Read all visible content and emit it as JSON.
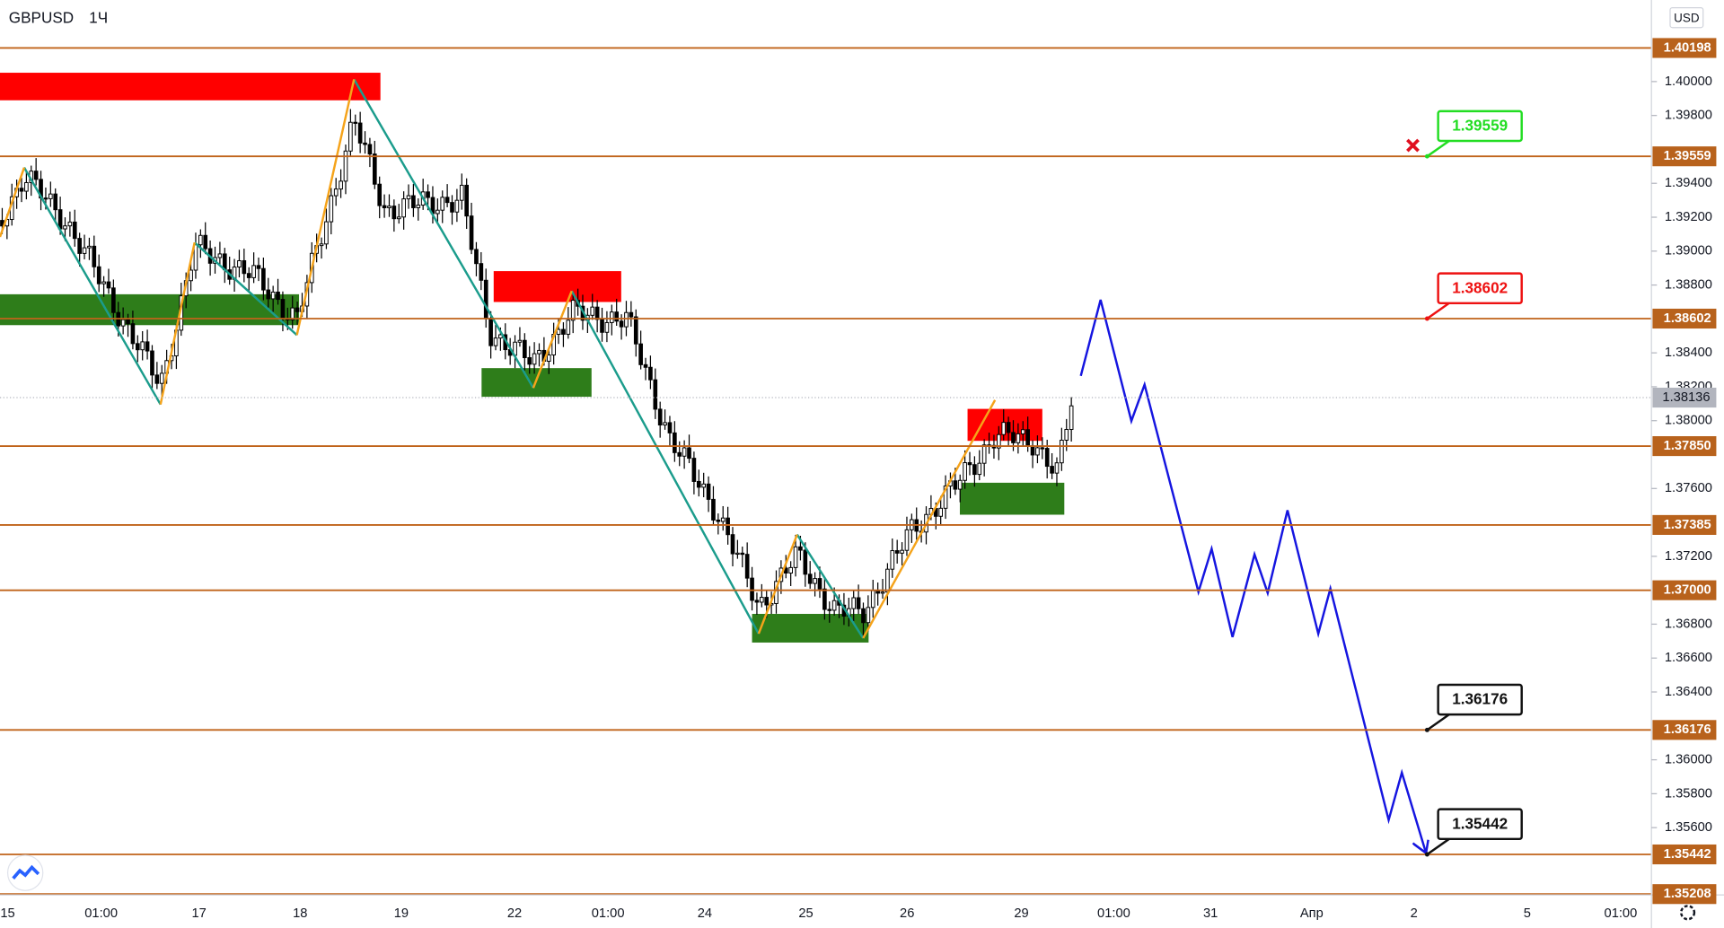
{
  "header": {
    "symbol": "GBPUSD",
    "timeframe": "1Ч",
    "currency": "USD"
  },
  "price_axis": {
    "ylim": [
      1.35203,
      1.40481
    ],
    "ticks": [
      {
        "value": 1.4,
        "label": "1.40000"
      },
      {
        "value": 1.398,
        "label": "1.39800"
      },
      {
        "value": 1.394,
        "label": "1.39400"
      },
      {
        "value": 1.392,
        "label": "1.39200"
      },
      {
        "value": 1.39,
        "label": "1.39000"
      },
      {
        "value": 1.388,
        "label": "1.38800"
      },
      {
        "value": 1.384,
        "label": "1.38400"
      },
      {
        "value": 1.382,
        "label": "1.38200"
      },
      {
        "value": 1.38,
        "label": "1.38000"
      },
      {
        "value": 1.376,
        "label": "1.37600"
      },
      {
        "value": 1.372,
        "label": "1.37200"
      },
      {
        "value": 1.368,
        "label": "1.36800"
      },
      {
        "value": 1.366,
        "label": "1.36600"
      },
      {
        "value": 1.364,
        "label": "1.36400"
      },
      {
        "value": 1.36,
        "label": "1.36000"
      },
      {
        "value": 1.358,
        "label": "1.35800"
      },
      {
        "value": 1.356,
        "label": "1.35600"
      }
    ]
  },
  "levels": [
    {
      "value": 1.40198,
      "label": "1.40198"
    },
    {
      "value": 1.39559,
      "label": "1.39559"
    },
    {
      "value": 1.38602,
      "label": "1.38602"
    },
    {
      "value": 1.3785,
      "label": "1.37850"
    },
    {
      "value": 1.37385,
      "label": "1.37385"
    },
    {
      "value": 1.37,
      "label": "1.37000"
    },
    {
      "value": 1.36176,
      "label": "1.36176"
    },
    {
      "value": 1.35442,
      "label": "1.35442"
    },
    {
      "value": 1.35208,
      "label": "1.35208"
    }
  ],
  "current_price": {
    "value": 1.38136,
    "label": "1.38136"
  },
  "callouts": [
    {
      "value": 1.39559,
      "label": "1.39559",
      "color": "#22dd22"
    },
    {
      "value": 1.38602,
      "label": "1.38602",
      "color": "#ee1111"
    },
    {
      "value": 1.36176,
      "label": "1.36176",
      "color": "#111111"
    },
    {
      "value": 1.35442,
      "label": "1.35442",
      "color": "#111111"
    }
  ],
  "time_axis": {
    "labels": [
      "15",
      "01:00",
      "17",
      "18",
      "19",
      "22",
      "01:00",
      "24",
      "25",
      "26",
      "29",
      "01:00",
      "31",
      "Апр",
      "2",
      "5",
      "01:00"
    ]
  }
}
